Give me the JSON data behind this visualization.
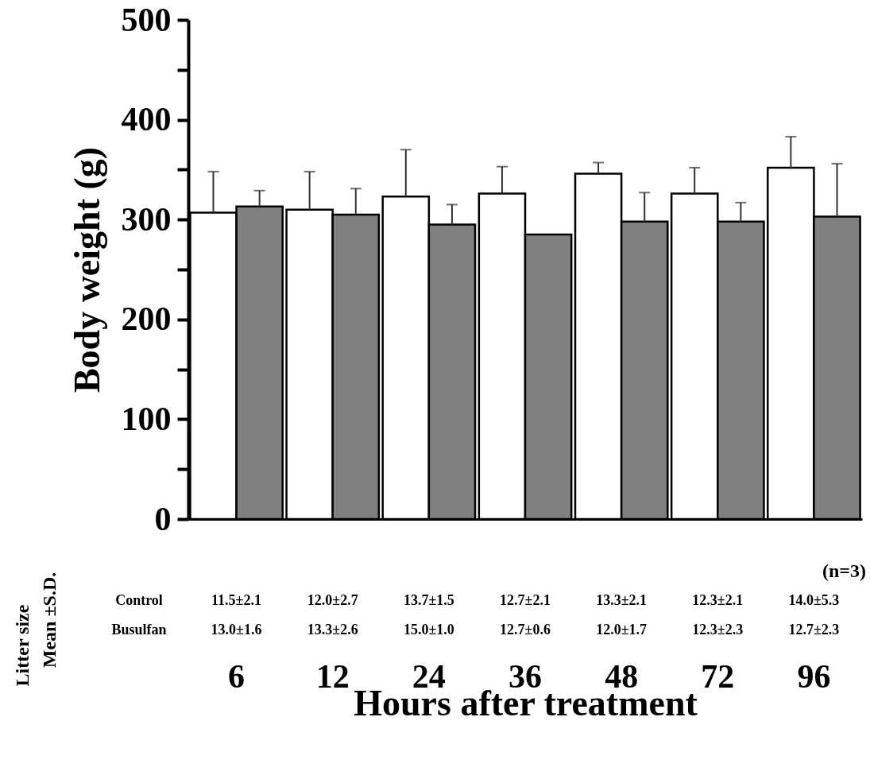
{
  "chart_data": {
    "type": "bar",
    "xlabel": "Hours after treatment",
    "ylabel": "Body weight (g)",
    "categories": [
      "6",
      "12",
      "24",
      "36",
      "48",
      "72",
      "96"
    ],
    "series": [
      {
        "color": "#ffffff",
        "values": [
          307,
          310,
          323,
          326,
          346,
          326,
          352
        ],
        "errors": [
          [
            307,
            348
          ],
          [
            310,
            348
          ],
          [
            323,
            370
          ],
          [
            326,
            353
          ],
          [
            346,
            357
          ],
          [
            326,
            352
          ],
          [
            352,
            383
          ]
        ]
      },
      {
        "color": "#808080",
        "values": [
          313,
          305,
          295,
          285,
          298,
          298,
          303
        ],
        "errors": [
          [
            313,
            329
          ],
          [
            305,
            331
          ],
          [
            295,
            315
          ],
          null,
          [
            298,
            327
          ],
          [
            298,
            317
          ],
          [
            303,
            356
          ]
        ]
      }
    ],
    "ylim": [
      0,
      500
    ],
    "yticks": [
      0,
      {
        "value": 50,
        "label": null
      },
      100,
      {
        "value": 150,
        "label": null
      },
      200,
      {
        "value": 250,
        "label": null
      },
      300,
      {
        "value": 350,
        "label": null
      },
      400,
      {
        "value": 450,
        "label": null
      },
      500
    ],
    "grid": false,
    "legend": false,
    "annotations": [
      "Litter size",
      "Mean ±S.D.",
      "(n=3)",
      "Control",
      "11.5±2.1",
      "12.0±2.7",
      "13.7±1.5",
      "12.7±2.1",
      "13.3±2.1",
      "12.3±2.1",
      "14.0±5.3",
      "Busulfan",
      "13.0±1.6",
      "13.3±2.6",
      "15.0±1.0",
      "12.7±0.6",
      "12.0±1.7",
      "12.3±2.3",
      "12.7±2.3"
    ]
  }
}
